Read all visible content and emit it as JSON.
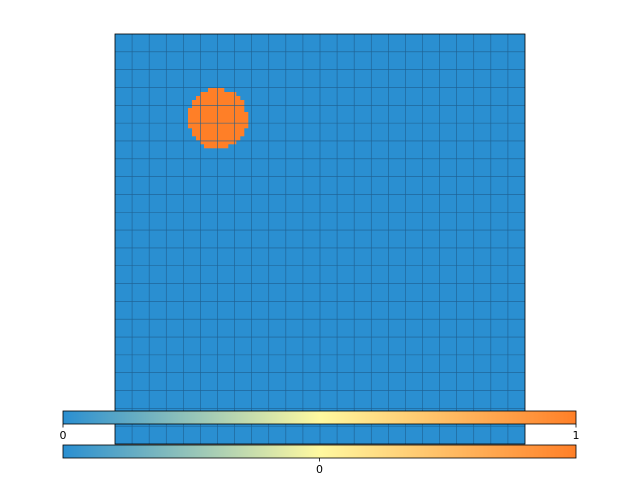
{
  "chart_data": {
    "type": "heatmap",
    "title": "",
    "xlabel": "",
    "ylabel": "",
    "grid": {
      "cols": 24,
      "rows": 23,
      "gridlines": true,
      "gridline_color": "#1f5f8f"
    },
    "background_value": 0,
    "blob": {
      "value": 1,
      "center_col": 6.0,
      "center_row": 4.75,
      "radius_cells": 1.2
    },
    "colormap": {
      "stops": [
        "#2a8fd1",
        "#fff9a0",
        "#ff7f27"
      ],
      "range": [
        0,
        1
      ]
    },
    "colorbars": [
      {
        "orientation": "horizontal",
        "ticks": [
          {
            "label": "0",
            "value": 0
          },
          {
            "label": "1",
            "value": 1
          }
        ]
      },
      {
        "orientation": "horizontal",
        "ticks": [
          {
            "label": "0",
            "value": 0.5
          }
        ]
      }
    ]
  }
}
